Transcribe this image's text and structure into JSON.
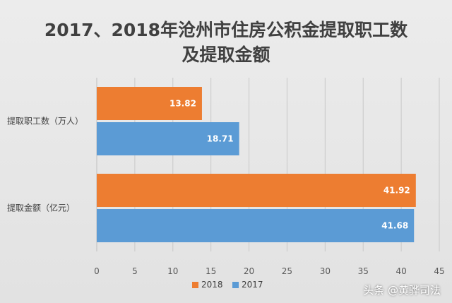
{
  "chart_data": {
    "type": "bar",
    "orientation": "horizontal",
    "title": "2017、2018年沧州市住房公积金提取职工数及提取金额",
    "title_lines": [
      "2017、2018年沧州市住房公积金提取职工数",
      "及提取金额"
    ],
    "categories": [
      "提取职工数（万人）",
      "提取金额（亿元）"
    ],
    "series": [
      {
        "name": "2018",
        "color": "#ed7d31",
        "values": [
          13.82,
          41.92
        ]
      },
      {
        "name": "2017",
        "color": "#5b9bd5",
        "values": [
          18.71,
          41.68
        ]
      }
    ],
    "xlim": [
      0,
      45
    ],
    "xticks": [
      0,
      5,
      10,
      15,
      20,
      25,
      30,
      35,
      40,
      45
    ],
    "xlabel": "",
    "ylabel": "",
    "grid": true,
    "legend_position": "bottom"
  },
  "watermark": "头条 @黄骅司法"
}
